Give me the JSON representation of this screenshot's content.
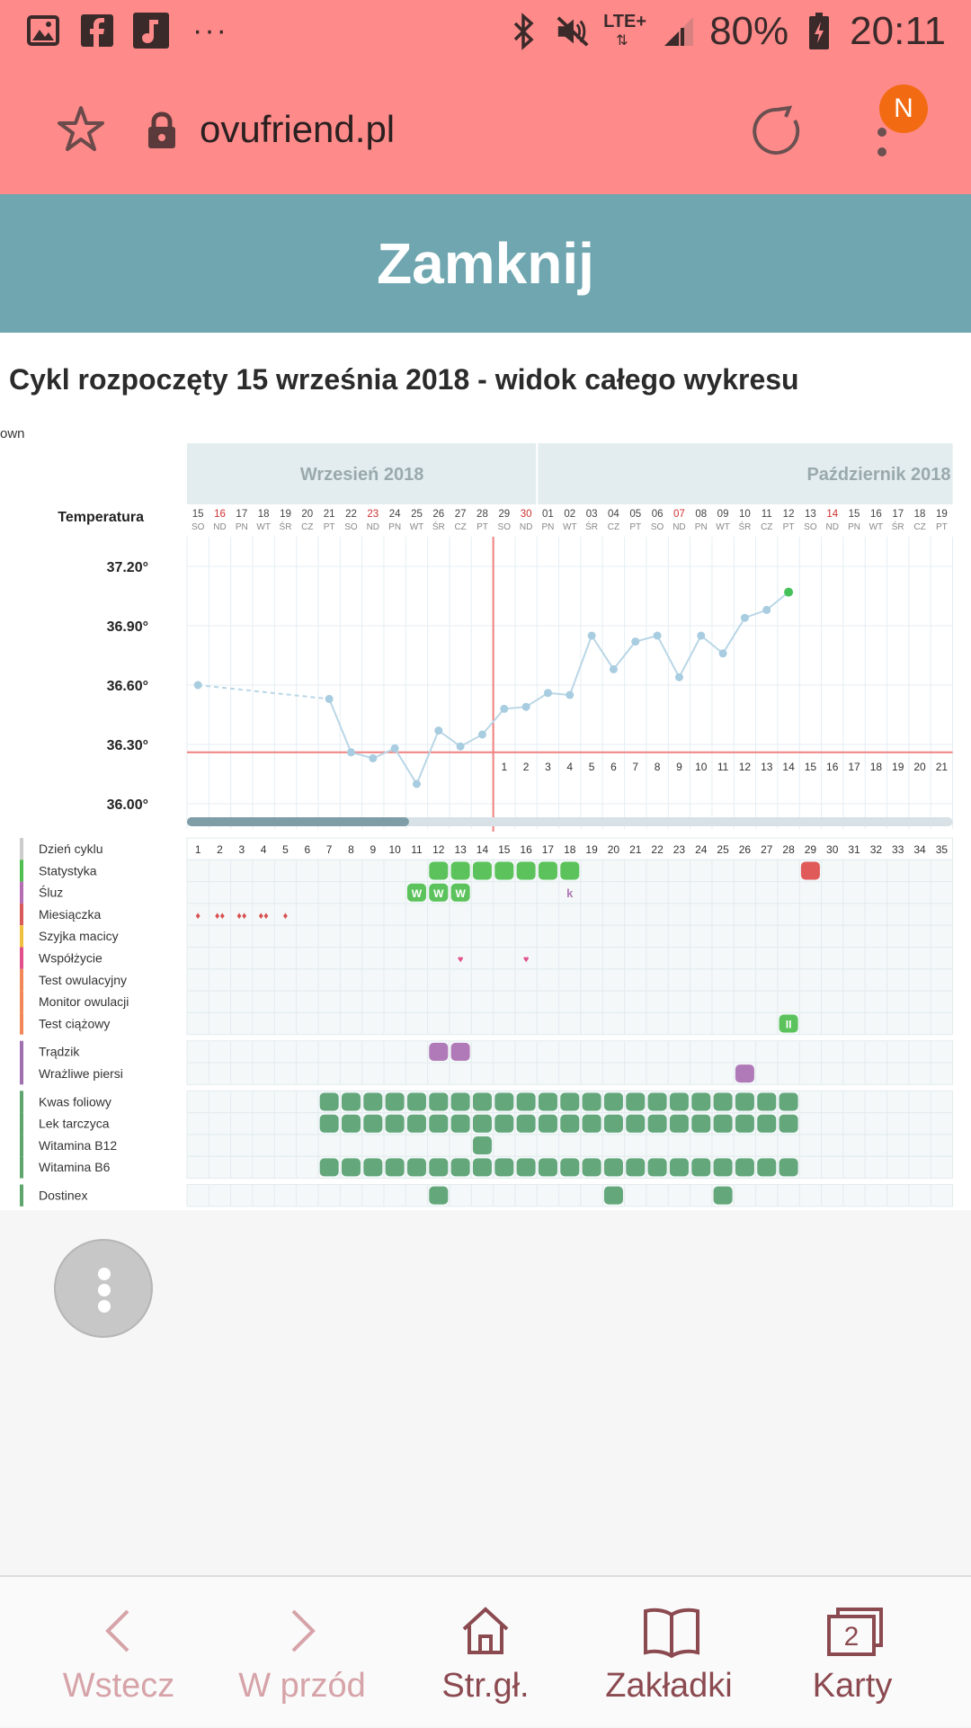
{
  "status_bar": {
    "battery": "80%",
    "time": "20:11",
    "network": "LTE+",
    "more": "···"
  },
  "browser": {
    "url": "ovufriend.pl",
    "avatar_letter": "N"
  },
  "banner": {
    "close_label": "Zamknij"
  },
  "page": {
    "title": "Cykl rozpoczęty 15 września 2018 - widok całego wykresu",
    "own_label": "own"
  },
  "chart_data": {
    "type": "line",
    "title": "",
    "ylabel": "Temperatura",
    "months": [
      {
        "label": "Wrzesień 2018"
      },
      {
        "label": "Październik 2018"
      }
    ],
    "y_ticks": [
      "37.20°",
      "36.90°",
      "36.60°",
      "36.30°",
      "36.00°"
    ],
    "ylim": [
      35.97,
      37.33
    ],
    "dates": [
      "15",
      "16",
      "17",
      "18",
      "19",
      "20",
      "21",
      "22",
      "23",
      "24",
      "25",
      "26",
      "27",
      "28",
      "29",
      "30",
      "01",
      "02",
      "03",
      "04",
      "05",
      "06",
      "07",
      "08",
      "09",
      "10",
      "11",
      "12",
      "13",
      "14",
      "15",
      "16",
      "17",
      "18",
      "19"
    ],
    "weekdays": [
      "SO",
      "ND",
      "PN",
      "WT",
      "ŚR",
      "CZ",
      "PT",
      "SO",
      "ND",
      "PN",
      "WT",
      "ŚR",
      "CZ",
      "PT",
      "SO",
      "ND",
      "PN",
      "WT",
      "ŚR",
      "CZ",
      "PT",
      "SO",
      "ND",
      "PN",
      "WT",
      "ŚR",
      "CZ",
      "PT",
      "SO",
      "ND",
      "PN",
      "WT",
      "ŚR",
      "CZ",
      "PT"
    ],
    "sundays": [
      1,
      8,
      15,
      22,
      29
    ],
    "cycle_day_row_label": "Dzień cyklu",
    "cycle_days": [
      "1",
      "2",
      "3",
      "4",
      "5",
      "6",
      "7",
      "8",
      "9",
      "10",
      "11",
      "12",
      "13",
      "14",
      "15",
      "16",
      "17",
      "18",
      "19",
      "20",
      "21",
      "22",
      "23",
      "24",
      "25",
      "26",
      "27",
      "28",
      "29",
      "30",
      "31",
      "32",
      "33",
      "34",
      "35"
    ],
    "post_ovulation_days": [
      "1",
      "2",
      "3",
      "4",
      "5",
      "6",
      "7",
      "8",
      "9",
      "10",
      "11",
      "12",
      "13",
      "14",
      "15",
      "16",
      "17",
      "18",
      "19",
      "20",
      "21"
    ],
    "coverline": 36.26,
    "ovulation_day": 14,
    "series": [
      {
        "values": [
          [
            1,
            36.6
          ],
          [
            7,
            36.53
          ],
          [
            8,
            36.26
          ],
          [
            9,
            36.23
          ],
          [
            10,
            36.28
          ],
          [
            11,
            36.1
          ],
          [
            12,
            36.37
          ],
          [
            13,
            36.29
          ],
          [
            14,
            36.35
          ],
          [
            15,
            36.48
          ],
          [
            16,
            36.49
          ],
          [
            17,
            36.56
          ],
          [
            18,
            36.55
          ],
          [
            19,
            36.85
          ],
          [
            20,
            36.68
          ],
          [
            21,
            36.82
          ],
          [
            22,
            36.85
          ],
          [
            23,
            36.64
          ],
          [
            24,
            36.85
          ],
          [
            25,
            36.76
          ],
          [
            26,
            36.94
          ],
          [
            27,
            36.98
          ],
          [
            28,
            37.07
          ]
        ]
      }
    ],
    "gap_segment": [
      1,
      7
    ],
    "last_point_color": "#46c25a",
    "line_color": "#b9d6e6",
    "grid": true
  },
  "rows": [
    {
      "label": "Statystyka",
      "color": "#4fbf4f",
      "group": 1,
      "marks": [
        {
          "d": 12,
          "t": "green"
        },
        {
          "d": 13,
          "t": "green"
        },
        {
          "d": 14,
          "t": "green"
        },
        {
          "d": 15,
          "t": "green"
        },
        {
          "d": 16,
          "t": "green"
        },
        {
          "d": 17,
          "t": "green"
        },
        {
          "d": 18,
          "t": "green"
        },
        {
          "d": 29,
          "t": "red"
        }
      ]
    },
    {
      "label": "Śluz",
      "color": "#b56db3",
      "group": 1,
      "marks": [
        {
          "d": 11,
          "t": "green",
          "txt": "W"
        },
        {
          "d": 12,
          "t": "green",
          "txt": "W"
        },
        {
          "d": 13,
          "t": "green",
          "txt": "W"
        },
        {
          "d": 18,
          "t": "text",
          "txt": "k"
        }
      ]
    },
    {
      "label": "Miesiączka",
      "color": "#d85a5a",
      "group": 1,
      "marks": [
        {
          "d": 1,
          "t": "drop",
          "txt": "♦"
        },
        {
          "d": 2,
          "t": "drop",
          "txt": "♦♦"
        },
        {
          "d": 3,
          "t": "drop",
          "txt": "♦♦"
        },
        {
          "d": 4,
          "t": "drop",
          "txt": "♦♦"
        },
        {
          "d": 5,
          "t": "drop",
          "txt": "♦"
        }
      ]
    },
    {
      "label": "Szyjka macicy",
      "color": "#f0c040",
      "group": 1,
      "marks": []
    },
    {
      "label": "Współżycie",
      "color": "#e0508a",
      "group": 1,
      "marks": [
        {
          "d": 13,
          "t": "heart",
          "txt": "♥"
        },
        {
          "d": 16,
          "t": "heart",
          "txt": "♥"
        }
      ]
    },
    {
      "label": "Test owulacyjny",
      "color": "#f0885a",
      "group": 1,
      "marks": []
    },
    {
      "label": "Monitor owulacji",
      "color": "#f0885a",
      "group": 1,
      "marks": []
    },
    {
      "label": "Test ciążowy",
      "color": "#f0885a",
      "group": 1,
      "marks": [
        {
          "d": 28,
          "t": "green",
          "txt": "II"
        }
      ]
    },
    {
      "label": "Trądzik",
      "color": "#a070b0",
      "group": 2,
      "marks": [
        {
          "d": 12,
          "t": "purple"
        },
        {
          "d": 13,
          "t": "purple"
        }
      ]
    },
    {
      "label": "Wrażliwe piersi",
      "color": "#a070b0",
      "group": 2,
      "marks": [
        {
          "d": 26,
          "t": "purple"
        }
      ]
    },
    {
      "label": "Kwas foliowy",
      "color": "#5ea56e",
      "group": 3,
      "marks": [
        {
          "d": 7,
          "t": "med"
        },
        {
          "d": 8,
          "t": "med"
        },
        {
          "d": 9,
          "t": "med"
        },
        {
          "d": 10,
          "t": "med"
        },
        {
          "d": 11,
          "t": "med"
        },
        {
          "d": 12,
          "t": "med"
        },
        {
          "d": 13,
          "t": "med"
        },
        {
          "d": 14,
          "t": "med"
        },
        {
          "d": 15,
          "t": "med"
        },
        {
          "d": 16,
          "t": "med"
        },
        {
          "d": 17,
          "t": "med"
        },
        {
          "d": 18,
          "t": "med"
        },
        {
          "d": 19,
          "t": "med"
        },
        {
          "d": 20,
          "t": "med"
        },
        {
          "d": 21,
          "t": "med"
        },
        {
          "d": 22,
          "t": "med"
        },
        {
          "d": 23,
          "t": "med"
        },
        {
          "d": 24,
          "t": "med"
        },
        {
          "d": 25,
          "t": "med"
        },
        {
          "d": 26,
          "t": "med"
        },
        {
          "d": 27,
          "t": "med"
        },
        {
          "d": 28,
          "t": "med"
        }
      ]
    },
    {
      "label": "Lek tarczyca",
      "color": "#5ea56e",
      "group": 3,
      "marks": [
        {
          "d": 7,
          "t": "med"
        },
        {
          "d": 8,
          "t": "med"
        },
        {
          "d": 9,
          "t": "med"
        },
        {
          "d": 10,
          "t": "med"
        },
        {
          "d": 11,
          "t": "med"
        },
        {
          "d": 12,
          "t": "med"
        },
        {
          "d": 13,
          "t": "med"
        },
        {
          "d": 14,
          "t": "med"
        },
        {
          "d": 15,
          "t": "med"
        },
        {
          "d": 16,
          "t": "med"
        },
        {
          "d": 17,
          "t": "med"
        },
        {
          "d": 18,
          "t": "med"
        },
        {
          "d": 19,
          "t": "med"
        },
        {
          "d": 20,
          "t": "med"
        },
        {
          "d": 21,
          "t": "med"
        },
        {
          "d": 22,
          "t": "med"
        },
        {
          "d": 23,
          "t": "med"
        },
        {
          "d": 24,
          "t": "med"
        },
        {
          "d": 25,
          "t": "med"
        },
        {
          "d": 26,
          "t": "med"
        },
        {
          "d": 27,
          "t": "med"
        },
        {
          "d": 28,
          "t": "med"
        }
      ]
    },
    {
      "label": "Witamina B12",
      "color": "#5ea56e",
      "group": 3,
      "marks": [
        {
          "d": 14,
          "t": "med"
        }
      ]
    },
    {
      "label": "Witamina B6",
      "color": "#5ea56e",
      "group": 3,
      "marks": [
        {
          "d": 7,
          "t": "med"
        },
        {
          "d": 8,
          "t": "med"
        },
        {
          "d": 9,
          "t": "med"
        },
        {
          "d": 10,
          "t": "med"
        },
        {
          "d": 11,
          "t": "med"
        },
        {
          "d": 12,
          "t": "med"
        },
        {
          "d": 13,
          "t": "med"
        },
        {
          "d": 14,
          "t": "med"
        },
        {
          "d": 15,
          "t": "med"
        },
        {
          "d": 16,
          "t": "med"
        },
        {
          "d": 17,
          "t": "med"
        },
        {
          "d": 18,
          "t": "med"
        },
        {
          "d": 19,
          "t": "med"
        },
        {
          "d": 20,
          "t": "med"
        },
        {
          "d": 21,
          "t": "med"
        },
        {
          "d": 22,
          "t": "med"
        },
        {
          "d": 23,
          "t": "med"
        },
        {
          "d": 24,
          "t": "med"
        },
        {
          "d": 25,
          "t": "med"
        },
        {
          "d": 26,
          "t": "med"
        },
        {
          "d": 27,
          "t": "med"
        },
        {
          "d": 28,
          "t": "med"
        }
      ]
    },
    {
      "label": "Dostinex",
      "color": "#5ea56e",
      "group": 4,
      "marks": [
        {
          "d": 12,
          "t": "med"
        },
        {
          "d": 20,
          "t": "med"
        },
        {
          "d": 25,
          "t": "med"
        }
      ]
    }
  ],
  "scroll_progress": 0.29,
  "bottom_nav": {
    "back": "Wstecz",
    "forward": "W przód",
    "home": "Str.gł.",
    "bookmarks": "Zakładki",
    "tabs": "Karty",
    "tabs_count": "2"
  },
  "colors": {
    "status_bg": "#ff8a8a",
    "banner_bg": "#6fa6b0",
    "nav_active": "#8b4a50",
    "nav_disabled": "#d6a3a8",
    "avatar": "#f26b12"
  }
}
